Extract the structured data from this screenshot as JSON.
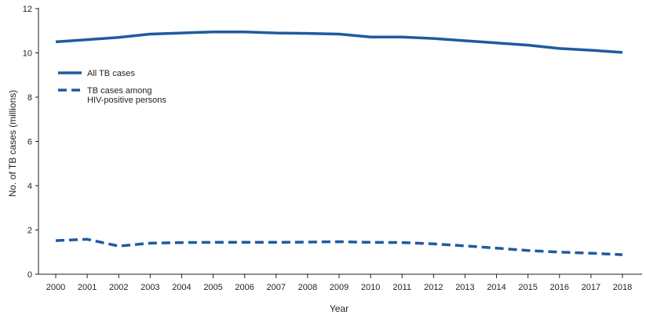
{
  "chart_data": {
    "type": "line",
    "xlabel": "Year",
    "ylabel": "No. of TB cases (millions)",
    "ylim": [
      0,
      12
    ],
    "yticks": [
      0,
      2,
      4,
      6,
      8,
      10,
      12
    ],
    "x": [
      "2000",
      "2001",
      "2002",
      "2003",
      "2004",
      "2005",
      "2006",
      "2007",
      "2008",
      "2009",
      "2010",
      "2011",
      "2012",
      "2013",
      "2014",
      "2015",
      "2016",
      "2017",
      "2018"
    ],
    "grid": false,
    "legend_position": "upper-left",
    "series": [
      {
        "name": "All TB cases",
        "style": "solid",
        "color": "#1f5b9e",
        "values": [
          10.5,
          10.6,
          10.7,
          10.85,
          10.9,
          10.95,
          10.95,
          10.9,
          10.88,
          10.85,
          10.72,
          10.72,
          10.65,
          10.55,
          10.45,
          10.35,
          10.2,
          10.12,
          10.02
        ]
      },
      {
        "name": "TB cases among HIV-positive persons",
        "legend_lines": [
          "TB cases among",
          "HIV-positive persons"
        ],
        "style": "dashed",
        "color": "#1f5b9e",
        "values": [
          1.52,
          1.58,
          1.27,
          1.4,
          1.43,
          1.44,
          1.44,
          1.44,
          1.45,
          1.47,
          1.44,
          1.43,
          1.37,
          1.28,
          1.18,
          1.07,
          1.0,
          0.95,
          0.88
        ]
      }
    ]
  }
}
